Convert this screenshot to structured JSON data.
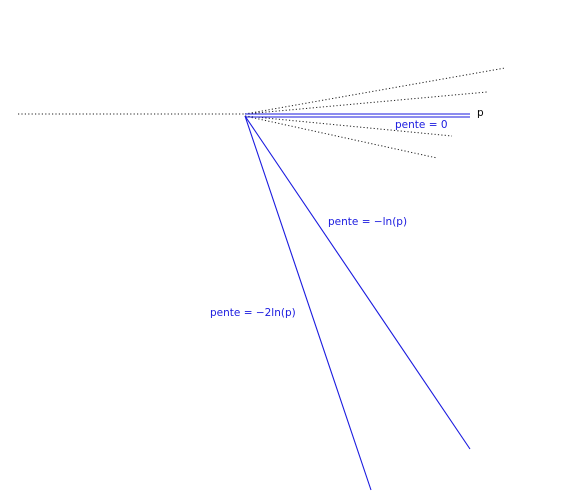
{
  "labels": {
    "point": "p",
    "slope_zero": "pente = 0",
    "slope_ln": "pente = −ln(p)",
    "slope_2ln": "pente = −2ln(p)"
  }
}
